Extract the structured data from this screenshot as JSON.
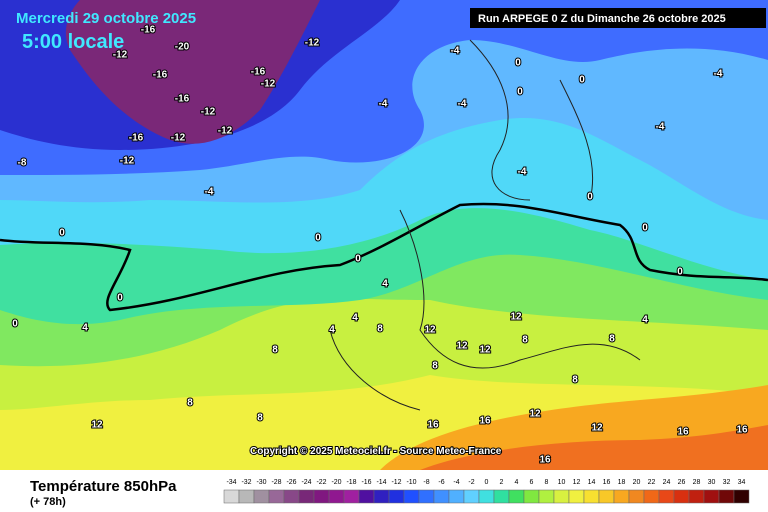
{
  "header": {
    "date": "Mercredi 29 octobre 2025",
    "time": "5:00 locale",
    "run": "Run ARPEGE 0 Z du Dimanche 26 octobre 2025"
  },
  "copyright": "Copyright © 2025 Meteociel.fr - Source Meteo-France",
  "footer": {
    "title": "Température 850hPa",
    "lead": "(+ 78h)"
  },
  "legend": {
    "ticks": [
      -34,
      -32,
      -30,
      -28,
      -26,
      -24,
      -22,
      -20,
      -18,
      -16,
      -14,
      -12,
      -10,
      -8,
      -6,
      -4,
      -2,
      0,
      2,
      4,
      6,
      8,
      10,
      12,
      14,
      16,
      18,
      20,
      22,
      24,
      26,
      28,
      30,
      32,
      34
    ],
    "colors": [
      "#d8d8d8",
      "#b8b8b8",
      "#a090a0",
      "#986898",
      "#884888",
      "#782878",
      "#801880",
      "#901890",
      "#a020a0",
      "#5010a0",
      "#3020c0",
      "#2030e0",
      "#2050ff",
      "#3070ff",
      "#4090ff",
      "#50b0ff",
      "#60d0ff",
      "#40e0e0",
      "#30e0a0",
      "#40e060",
      "#80e840",
      "#b0f040",
      "#d8f040",
      "#f0f040",
      "#f8e030",
      "#f8c828",
      "#f8a820",
      "#f08820",
      "#f06818",
      "#e84818",
      "#d83010",
      "#c02010",
      "#a01010",
      "#700808",
      "#300000"
    ]
  },
  "contours": [
    -16,
    -20,
    -12,
    -16,
    -16,
    -12,
    -12,
    -16,
    -12,
    -12,
    -8,
    -12,
    -12,
    -16,
    -4,
    -4,
    -4,
    0,
    0,
    0,
    -4,
    -4,
    -4,
    0,
    -4,
    0,
    0,
    0,
    0,
    0,
    4,
    4,
    4,
    4,
    8,
    8,
    12,
    12,
    12,
    12,
    8,
    8,
    8,
    8,
    8,
    8,
    12,
    16,
    16,
    12,
    12,
    16,
    16,
    16,
    4,
    0,
    0
  ]
}
